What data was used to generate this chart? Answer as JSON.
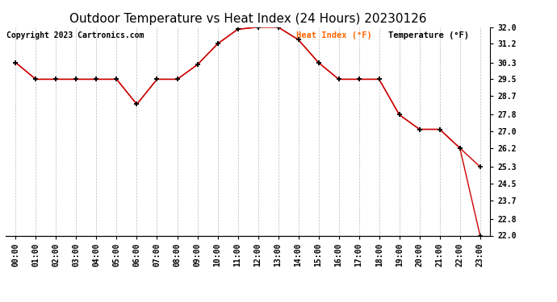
{
  "title": "Outdoor Temperature vs Heat Index (24 Hours) 20230126",
  "copyright": "Copyright 2023 Cartronics.com",
  "legend_heat": "Heat Index (°F)",
  "legend_temp": "Temperature (°F)",
  "x_labels": [
    "00:00",
    "01:00",
    "02:00",
    "03:00",
    "04:00",
    "05:00",
    "06:00",
    "07:00",
    "08:00",
    "09:00",
    "10:00",
    "11:00",
    "12:00",
    "13:00",
    "14:00",
    "15:00",
    "16:00",
    "17:00",
    "18:00",
    "19:00",
    "20:00",
    "21:00",
    "22:00",
    "23:00"
  ],
  "heat_index": [
    30.3,
    29.5,
    29.5,
    29.5,
    29.5,
    29.5,
    28.3,
    29.5,
    29.5,
    30.2,
    31.2,
    31.9,
    32.0,
    32.0,
    31.4,
    30.3,
    29.5,
    29.5,
    29.5,
    27.8,
    27.1,
    27.1,
    26.2,
    25.3
  ],
  "temperature": [
    30.3,
    29.5,
    29.5,
    29.5,
    29.5,
    29.5,
    28.3,
    29.5,
    29.5,
    30.2,
    31.2,
    31.9,
    32.0,
    32.0,
    31.4,
    30.3,
    29.5,
    29.5,
    29.5,
    27.8,
    27.1,
    27.1,
    26.2,
    22.0
  ],
  "ylim_min": 22.0,
  "ylim_max": 32.0,
  "yticks": [
    22.0,
    22.8,
    23.7,
    24.5,
    25.3,
    26.2,
    27.0,
    27.8,
    28.7,
    29.5,
    30.3,
    31.2,
    32.0
  ],
  "line_color": "#cc0000",
  "marker_color": "#000000",
  "title_fontsize": 11,
  "copyright_fontsize": 7,
  "legend_fontsize": 7.5,
  "tick_fontsize": 7,
  "background_color": "#ffffff",
  "grid_color": "#bbbbbb",
  "legend_heat_color": "#ff6600",
  "legend_temp_color": "#000000"
}
